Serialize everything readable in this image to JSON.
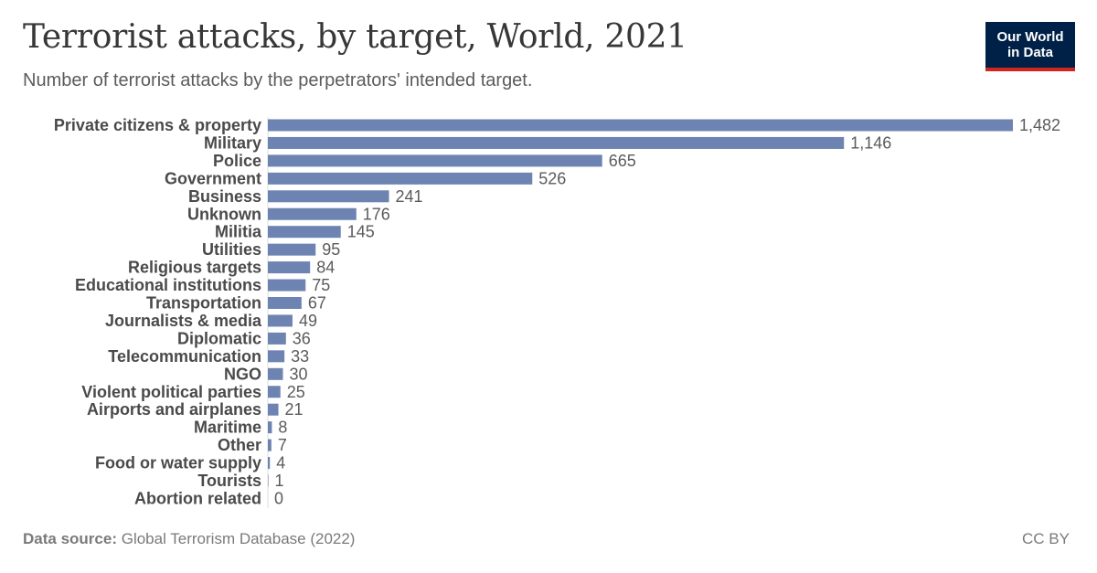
{
  "header": {
    "title": "Terrorist attacks, by target, World, 2021",
    "subtitle": "Number of terrorist attacks by the perpetrators' intended target."
  },
  "logo": {
    "line1": "Our World",
    "line2": "in Data",
    "bg_color": "#002147",
    "accent_color": "#ce261e"
  },
  "footer": {
    "source_label": "Data source:",
    "source_text": "Global Terrorism Database (2022)",
    "license": "CC BY"
  },
  "colors": {
    "bar": "#6d83b1"
  },
  "chart_data": {
    "type": "bar",
    "orientation": "horizontal",
    "categories": [
      "Private citizens & property",
      "Military",
      "Police",
      "Government",
      "Business",
      "Unknown",
      "Militia",
      "Utilities",
      "Religious targets",
      "Educational institutions",
      "Transportation",
      "Journalists & media",
      "Diplomatic",
      "Telecommunication",
      "NGO",
      "Violent political parties",
      "Airports and airplanes",
      "Maritime",
      "Other",
      "Food or water supply",
      "Tourists",
      "Abortion related"
    ],
    "values": [
      1482,
      1146,
      665,
      526,
      241,
      176,
      145,
      95,
      84,
      75,
      67,
      49,
      36,
      33,
      30,
      25,
      21,
      8,
      7,
      4,
      1,
      0
    ],
    "value_labels": [
      "1,482",
      "1,146",
      "665",
      "526",
      "241",
      "176",
      "145",
      "95",
      "84",
      "75",
      "67",
      "49",
      "36",
      "33",
      "30",
      "25",
      "21",
      "8",
      "7",
      "4",
      "1",
      "0"
    ],
    "xlim": [
      0,
      1482
    ],
    "grid": false,
    "legend": "none"
  }
}
